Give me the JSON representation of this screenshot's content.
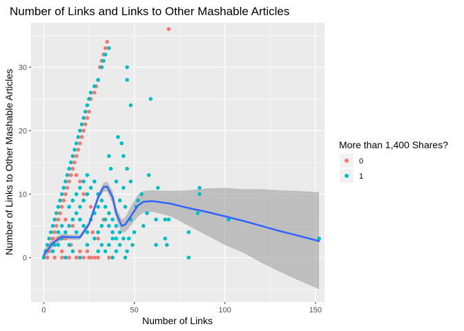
{
  "chart_data": {
    "type": "scatter",
    "title": "Number of Links and Links to Other Mashable Articles",
    "xlabel": "Number of Links",
    "ylabel": "Number of Links to Other Mashable Articles",
    "xlim": [
      -7,
      155
    ],
    "ylim": [
      -7,
      37
    ],
    "xticks": [
      0,
      50,
      100,
      150
    ],
    "yticks": [
      0,
      10,
      20,
      30
    ],
    "grid": true,
    "legend": {
      "title": "More than 1,400 Shares?",
      "position": "right",
      "entries": [
        {
          "label": "0",
          "color": "#f8766d"
        },
        {
          "label": "1",
          "color": "#00bfc4"
        }
      ]
    },
    "series": [
      {
        "name": "0",
        "color": "#f8766d",
        "points": [
          [
            69,
            36
          ],
          [
            35,
            34
          ],
          [
            34,
            33
          ],
          [
            33,
            32
          ],
          [
            32,
            31
          ],
          [
            31,
            30
          ],
          [
            30,
            28
          ],
          [
            29,
            27
          ],
          [
            28,
            26
          ],
          [
            26,
            25
          ],
          [
            25,
            23
          ],
          [
            24,
            22
          ],
          [
            23,
            21
          ],
          [
            22,
            20
          ],
          [
            21,
            19
          ],
          [
            20,
            18
          ],
          [
            19,
            17
          ],
          [
            18,
            16
          ],
          [
            17,
            15
          ],
          [
            16,
            14
          ],
          [
            15,
            13
          ],
          [
            14,
            12
          ],
          [
            13,
            11
          ],
          [
            12,
            10
          ],
          [
            11,
            9
          ],
          [
            10,
            8
          ],
          [
            9,
            7
          ],
          [
            8,
            6
          ],
          [
            7,
            5
          ],
          [
            6,
            4
          ],
          [
            5,
            3
          ],
          [
            4,
            2
          ],
          [
            3,
            1
          ],
          [
            2,
            0
          ],
          [
            0,
            0
          ],
          [
            6,
            0
          ],
          [
            10,
            0
          ],
          [
            14,
            0
          ],
          [
            18,
            0
          ],
          [
            22,
            0
          ],
          [
            26,
            0
          ],
          [
            28,
            0
          ],
          [
            30,
            0
          ],
          [
            36,
            0
          ],
          [
            20,
            1
          ],
          [
            24,
            1
          ],
          [
            12,
            3
          ],
          [
            16,
            5
          ],
          [
            27,
            4
          ],
          [
            30,
            3
          ],
          [
            33,
            6
          ],
          [
            26,
            8
          ],
          [
            22,
            10
          ],
          [
            20,
            12
          ],
          [
            18,
            13
          ],
          [
            15,
            2
          ],
          [
            10,
            1
          ],
          [
            8,
            3
          ],
          [
            12,
            6
          ],
          [
            25,
            0
          ]
        ]
      },
      {
        "name": "1",
        "color": "#00bfc4",
        "points": [
          [
            0,
            0
          ],
          [
            1,
            1
          ],
          [
            2,
            2
          ],
          [
            3,
            3
          ],
          [
            4,
            4
          ],
          [
            5,
            5
          ],
          [
            6,
            6
          ],
          [
            7,
            7
          ],
          [
            8,
            8
          ],
          [
            9,
            9
          ],
          [
            10,
            10
          ],
          [
            11,
            11
          ],
          [
            12,
            12
          ],
          [
            13,
            13
          ],
          [
            14,
            14
          ],
          [
            15,
            15
          ],
          [
            16,
            16
          ],
          [
            17,
            17
          ],
          [
            18,
            18
          ],
          [
            19,
            19
          ],
          [
            20,
            20
          ],
          [
            21,
            21
          ],
          [
            22,
            22
          ],
          [
            23,
            23
          ],
          [
            24,
            24
          ],
          [
            25,
            25
          ],
          [
            26,
            26
          ],
          [
            28,
            27
          ],
          [
            30,
            28
          ],
          [
            32,
            30
          ],
          [
            33,
            31
          ],
          [
            34,
            32
          ],
          [
            36,
            33
          ],
          [
            46,
            30
          ],
          [
            46,
            28
          ],
          [
            48,
            24
          ],
          [
            59,
            25
          ],
          [
            41,
            19
          ],
          [
            43,
            18
          ],
          [
            44,
            16
          ],
          [
            46,
            14
          ],
          [
            40,
            12
          ],
          [
            48,
            12
          ],
          [
            36,
            16
          ],
          [
            37,
            14
          ],
          [
            58,
            13
          ],
          [
            63,
            11
          ],
          [
            54,
            10
          ],
          [
            52,
            9
          ],
          [
            51,
            8
          ],
          [
            57,
            7
          ],
          [
            62,
            6
          ],
          [
            67,
            6
          ],
          [
            69,
            6
          ],
          [
            86,
            11
          ],
          [
            86,
            10
          ],
          [
            85,
            7
          ],
          [
            102,
            6
          ],
          [
            80,
            4
          ],
          [
            67,
            3
          ],
          [
            68,
            2
          ],
          [
            62,
            2
          ],
          [
            55,
            5
          ],
          [
            48,
            6
          ],
          [
            45,
            8
          ],
          [
            42,
            9
          ],
          [
            44,
            11
          ],
          [
            50,
            4
          ],
          [
            47,
            3
          ],
          [
            49,
            2
          ],
          [
            46,
            1
          ],
          [
            45,
            0
          ],
          [
            80,
            0
          ],
          [
            152,
            3
          ],
          [
            5,
            1
          ],
          [
            8,
            2
          ],
          [
            10,
            3
          ],
          [
            12,
            4
          ],
          [
            14,
            5
          ],
          [
            16,
            6
          ],
          [
            18,
            7
          ],
          [
            20,
            8
          ],
          [
            22,
            9
          ],
          [
            24,
            10
          ],
          [
            26,
            11
          ],
          [
            28,
            12
          ],
          [
            30,
            10
          ],
          [
            32,
            9
          ],
          [
            34,
            8
          ],
          [
            36,
            7
          ],
          [
            38,
            6
          ],
          [
            40,
            5
          ],
          [
            42,
            4
          ],
          [
            44,
            3
          ],
          [
            42,
            2
          ],
          [
            40,
            1
          ],
          [
            38,
            0
          ],
          [
            20,
            0
          ],
          [
            16,
            1
          ],
          [
            24,
            2
          ],
          [
            28,
            3
          ],
          [
            30,
            4
          ],
          [
            32,
            5
          ],
          [
            34,
            6
          ],
          [
            36,
            5
          ],
          [
            38,
            4
          ],
          [
            40,
            3
          ],
          [
            12,
            0
          ],
          [
            14,
            2
          ],
          [
            18,
            4
          ],
          [
            22,
            5
          ],
          [
            26,
            6
          ],
          [
            28,
            7
          ],
          [
            30,
            8
          ],
          [
            32,
            2
          ],
          [
            34,
            1
          ],
          [
            36,
            2
          ],
          [
            38,
            3
          ],
          [
            24,
            4
          ],
          [
            20,
            6
          ],
          [
            6,
            2
          ],
          [
            8,
            4
          ],
          [
            10,
            5
          ],
          [
            14,
            8
          ],
          [
            16,
            9
          ],
          [
            18,
            10
          ],
          [
            20,
            11
          ],
          [
            22,
            12
          ],
          [
            24,
            13
          ],
          [
            30,
            1
          ]
        ]
      }
    ],
    "smooth": {
      "x": [
        0,
        5,
        10,
        15,
        20,
        25,
        30,
        33,
        35,
        38,
        40,
        43,
        45,
        48,
        52,
        55,
        60,
        70,
        80,
        90,
        100,
        110,
        120,
        130,
        140,
        152
      ],
      "y": [
        0.4,
        2.3,
        3.3,
        3.2,
        3.2,
        5.3,
        9.5,
        11.1,
        11.2,
        9.5,
        7.0,
        5.0,
        5.2,
        6.5,
        8.2,
        8.8,
        8.9,
        8.5,
        7.8,
        7.2,
        6.5,
        5.8,
        5.0,
        4.2,
        3.5,
        2.6
      ],
      "lo": [
        -0.4,
        1.6,
        2.8,
        2.8,
        2.8,
        4.8,
        8.9,
        10.4,
        10.4,
        8.5,
        6.0,
        4.0,
        4.0,
        5.0,
        6.5,
        7.1,
        7.2,
        6.5,
        5.0,
        3.5,
        2.0,
        0.8,
        -0.8,
        -2.2,
        -3.5,
        -5.0
      ],
      "hi": [
        1.2,
        3.0,
        3.8,
        3.6,
        3.6,
        5.8,
        10.1,
        11.8,
        12.0,
        10.5,
        8.0,
        6.0,
        6.4,
        8.0,
        9.9,
        10.5,
        10.6,
        10.5,
        10.6,
        10.9,
        11.0,
        10.8,
        10.8,
        10.6,
        10.5,
        10.3
      ]
    }
  }
}
